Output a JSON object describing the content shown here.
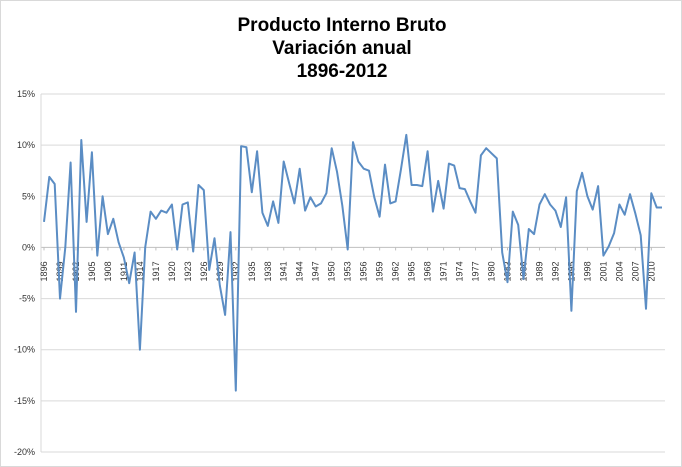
{
  "chart_data": {
    "type": "line",
    "title": "Producto Interno Bruto",
    "subtitle": "Variación anual",
    "period": "1896-2012",
    "xlabel": "",
    "ylabel": "",
    "ylim": [
      -0.2,
      0.15
    ],
    "y_tick_labels": [
      "15%",
      "10%",
      "5%",
      "0%",
      "-5%",
      "-10%",
      "-15%",
      "-20%"
    ],
    "y_tick_values": [
      0.15,
      0.1,
      0.05,
      0.0,
      -0.05,
      -0.1,
      -0.15,
      -0.2
    ],
    "x_tick_labels": [
      "1896",
      "1899",
      "1902",
      "1905",
      "1908",
      "1911",
      "1914",
      "1917",
      "1920",
      "1923",
      "1926",
      "1929",
      "1932",
      "1935",
      "1938",
      "1941",
      "1944",
      "1947",
      "1950",
      "1953",
      "1956",
      "1959",
      "1962",
      "1965",
      "1968",
      "1971",
      "1974",
      "1977",
      "1980",
      "1983",
      "1986",
      "1989",
      "1992",
      "1995",
      "1998",
      "2001",
      "2004",
      "2007",
      "2010"
    ],
    "grid": true,
    "legend": "none",
    "line_color": "#5b8dc4",
    "x": [
      1896,
      1897,
      1898,
      1899,
      1900,
      1901,
      1902,
      1903,
      1904,
      1905,
      1906,
      1907,
      1908,
      1909,
      1910,
      1911,
      1912,
      1913,
      1914,
      1915,
      1916,
      1917,
      1918,
      1919,
      1920,
      1921,
      1922,
      1923,
      1924,
      1925,
      1926,
      1927,
      1928,
      1929,
      1930,
      1931,
      1932,
      1933,
      1934,
      1935,
      1936,
      1937,
      1938,
      1939,
      1940,
      1941,
      1942,
      1943,
      1944,
      1945,
      1946,
      1947,
      1948,
      1949,
      1950,
      1951,
      1952,
      1953,
      1954,
      1955,
      1956,
      1957,
      1958,
      1959,
      1960,
      1961,
      1962,
      1963,
      1964,
      1965,
      1966,
      1967,
      1968,
      1969,
      1970,
      1971,
      1972,
      1973,
      1974,
      1975,
      1976,
      1977,
      1978,
      1979,
      1980,
      1981,
      1982,
      1983,
      1984,
      1985,
      1986,
      1987,
      1988,
      1989,
      1990,
      1991,
      1992,
      1993,
      1994,
      1995,
      1996,
      1997,
      1998,
      1999,
      2000,
      2001,
      2002,
      2003,
      2004,
      2005,
      2006,
      2007,
      2008,
      2009,
      2010,
      2011,
      2012
    ],
    "values": [
      0.025,
      0.069,
      0.062,
      -0.05,
      0.0,
      0.083,
      -0.063,
      0.105,
      0.025,
      0.093,
      -0.008,
      0.05,
      0.013,
      0.028,
      0.005,
      -0.01,
      -0.035,
      -0.005,
      -0.1,
      0.0,
      0.035,
      0.028,
      0.036,
      0.034,
      0.042,
      -0.002,
      0.042,
      0.044,
      -0.004,
      0.061,
      0.056,
      -0.022,
      0.009,
      -0.037,
      -0.066,
      0.015,
      -0.14,
      0.099,
      0.098,
      0.054,
      0.094,
      0.034,
      0.021,
      0.045,
      0.024,
      0.084,
      0.063,
      0.043,
      0.077,
      0.036,
      0.049,
      0.04,
      0.043,
      0.053,
      0.097,
      0.074,
      0.041,
      -0.002,
      0.103,
      0.084,
      0.077,
      0.075,
      0.049,
      0.03,
      0.081,
      0.043,
      0.045,
      0.076,
      0.11,
      0.061,
      0.061,
      0.06,
      0.094,
      0.035,
      0.065,
      0.038,
      0.082,
      0.08,
      0.058,
      0.057,
      0.045,
      0.034,
      0.09,
      0.097,
      0.092,
      0.087,
      -0.005,
      -0.034,
      0.035,
      0.022,
      -0.031,
      0.018,
      0.013,
      0.042,
      0.052,
      0.042,
      0.036,
      0.02,
      0.049,
      -0.062,
      0.055,
      0.073,
      0.05,
      0.037,
      0.06,
      -0.008,
      0.001,
      0.014,
      0.042,
      0.032,
      0.052,
      0.033,
      0.012,
      -0.06,
      0.053,
      0.039,
      0.039
    ]
  }
}
